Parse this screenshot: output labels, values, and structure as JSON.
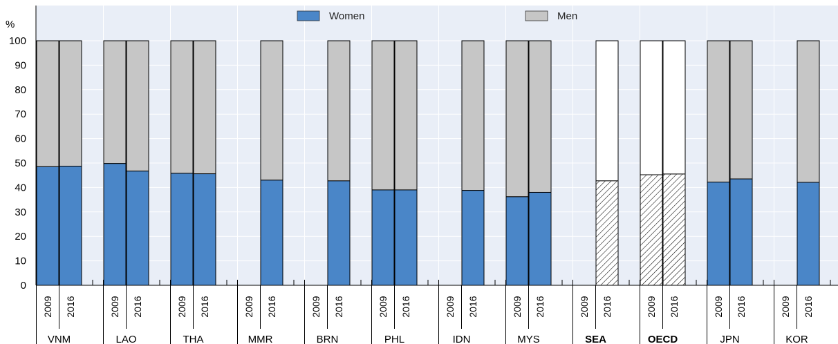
{
  "chart_data": {
    "type": "bar",
    "stacked": true,
    "yunit": "%",
    "ylim": [
      0,
      100
    ],
    "yticks": [
      0,
      10,
      20,
      30,
      40,
      50,
      60,
      70,
      80,
      90,
      100
    ],
    "grid": true,
    "legend_placement": "top",
    "legend": [
      {
        "name": "Women",
        "color": "#4a86c8"
      },
      {
        "name": "Men",
        "color": "#c6c6c6"
      }
    ],
    "years": [
      "2009",
      "2016"
    ],
    "groups": [
      {
        "name": "VNM",
        "bold": false,
        "hatched": false,
        "women": [
          48.5,
          48.7
        ]
      },
      {
        "name": "LAO",
        "bold": false,
        "hatched": false,
        "women": [
          49.8,
          46.7
        ]
      },
      {
        "name": "THA",
        "bold": false,
        "hatched": false,
        "women": [
          45.8,
          45.6
        ]
      },
      {
        "name": "MMR",
        "bold": false,
        "hatched": false,
        "women": [
          null,
          43.0
        ]
      },
      {
        "name": "BRN",
        "bold": false,
        "hatched": false,
        "women": [
          null,
          42.7
        ]
      },
      {
        "name": "PHL",
        "bold": false,
        "hatched": false,
        "women": [
          39.0,
          39.0
        ]
      },
      {
        "name": "IDN",
        "bold": false,
        "hatched": false,
        "women": [
          null,
          38.8
        ]
      },
      {
        "name": "MYS",
        "bold": false,
        "hatched": false,
        "women": [
          36.2,
          38.0
        ]
      },
      {
        "name": "SEA",
        "bold": true,
        "hatched": true,
        "women": [
          null,
          42.7
        ]
      },
      {
        "name": "OECD",
        "bold": true,
        "hatched": true,
        "women": [
          45.2,
          45.5
        ]
      },
      {
        "name": "JPN",
        "bold": false,
        "hatched": false,
        "women": [
          42.2,
          43.5
        ]
      },
      {
        "name": "KOR",
        "bold": false,
        "hatched": false,
        "women": [
          null,
          42.1
        ]
      }
    ],
    "colors": {
      "women": "#4a86c8",
      "men": "#c6c6c6",
      "plot_background": "#e9eef7",
      "gridline": "#ffffff",
      "hatch_fill": "#ffffff"
    }
  }
}
